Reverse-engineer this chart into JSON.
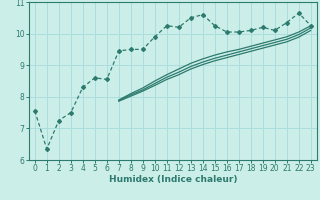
{
  "xlabel": "Humidex (Indice chaleur)",
  "bg_color": "#cceee8",
  "grid_color": "#aadddd",
  "line_color": "#2d7a6e",
  "xlim": [
    -0.5,
    23.5
  ],
  "ylim": [
    6,
    11
  ],
  "yticks": [
    6,
    7,
    8,
    9,
    10,
    11
  ],
  "xticks": [
    0,
    1,
    2,
    3,
    4,
    5,
    6,
    7,
    8,
    9,
    10,
    11,
    12,
    13,
    14,
    15,
    16,
    17,
    18,
    19,
    20,
    21,
    22,
    23
  ],
  "main_x": [
    0,
    1,
    2,
    3,
    4,
    5,
    6,
    7,
    8,
    9,
    10,
    11,
    12,
    13,
    14,
    15,
    16,
    17,
    18,
    19,
    20,
    21,
    22,
    23
  ],
  "main_y": [
    7.55,
    6.35,
    7.25,
    7.5,
    8.3,
    8.6,
    8.55,
    9.45,
    9.5,
    9.5,
    9.9,
    10.25,
    10.2,
    10.5,
    10.6,
    10.25,
    10.05,
    10.05,
    10.1,
    10.2,
    10.1,
    10.35,
    10.65,
    10.25
  ],
  "line2_x": [
    7,
    8,
    9,
    10,
    11,
    12,
    13,
    14,
    15,
    16,
    17,
    18,
    19,
    20,
    21,
    22,
    23
  ],
  "line2_y": [
    7.9,
    8.1,
    8.28,
    8.5,
    8.7,
    8.88,
    9.06,
    9.2,
    9.32,
    9.42,
    9.5,
    9.6,
    9.7,
    9.8,
    9.9,
    10.05,
    10.25
  ],
  "line3_x": [
    7,
    8,
    9,
    10,
    11,
    12,
    13,
    14,
    15,
    16,
    17,
    18,
    19,
    20,
    21,
    22,
    23
  ],
  "line3_y": [
    7.88,
    8.06,
    8.22,
    8.42,
    8.62,
    8.78,
    8.96,
    9.1,
    9.22,
    9.32,
    9.42,
    9.52,
    9.62,
    9.72,
    9.82,
    9.97,
    10.18
  ],
  "line4_x": [
    7,
    8,
    9,
    10,
    11,
    12,
    13,
    14,
    15,
    16,
    17,
    18,
    19,
    20,
    21,
    22,
    23
  ],
  "line4_y": [
    7.86,
    8.02,
    8.18,
    8.36,
    8.55,
    8.7,
    8.88,
    9.02,
    9.14,
    9.24,
    9.34,
    9.44,
    9.54,
    9.64,
    9.74,
    9.89,
    10.1
  ],
  "marker": "D",
  "marker_size": 2.0,
  "line_width": 0.9
}
